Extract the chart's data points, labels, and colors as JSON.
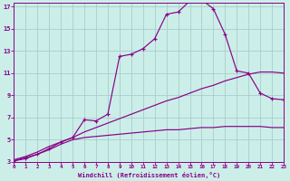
{
  "xlabel": "Windchill (Refroidissement éolien,°C)",
  "bg_color": "#cceee8",
  "line_color": "#880088",
  "grid_color": "#aacccc",
  "x_min": 0,
  "x_max": 23,
  "y_min": 3,
  "y_max": 17,
  "s1_x": [
    0,
    1,
    2,
    3,
    4,
    5,
    6,
    7,
    8,
    9,
    10,
    11,
    12,
    13,
    14,
    15,
    16,
    17,
    18,
    19,
    20,
    21,
    22,
    23
  ],
  "s1_y": [
    3.1,
    3.3,
    3.7,
    4.2,
    4.8,
    5.2,
    6.8,
    6.7,
    7.3,
    12.5,
    12.7,
    13.2,
    14.1,
    16.3,
    16.5,
    17.5,
    17.6,
    16.8,
    14.5,
    11.2,
    11.0,
    9.2,
    8.7,
    8.6
  ],
  "s2_x": [
    0,
    1,
    2,
    3,
    4,
    5,
    6,
    7,
    8,
    9,
    10,
    11,
    12,
    13,
    14,
    15,
    16,
    17,
    18,
    19,
    20,
    21,
    22,
    23
  ],
  "s2_y": [
    3.2,
    3.5,
    3.9,
    4.4,
    4.8,
    5.2,
    5.7,
    6.1,
    6.5,
    6.9,
    7.3,
    7.7,
    8.1,
    8.5,
    8.8,
    9.2,
    9.6,
    9.9,
    10.3,
    10.6,
    10.9,
    11.1,
    11.1,
    11.0
  ],
  "s3_x": [
    0,
    1,
    2,
    3,
    4,
    5,
    6,
    7,
    8,
    9,
    10,
    11,
    12,
    13,
    14,
    15,
    16,
    17,
    18,
    19,
    20,
    21,
    22,
    23
  ],
  "s3_y": [
    3.1,
    3.4,
    3.7,
    4.1,
    4.6,
    5.0,
    5.2,
    5.3,
    5.4,
    5.5,
    5.6,
    5.7,
    5.8,
    5.9,
    5.9,
    6.0,
    6.1,
    6.1,
    6.2,
    6.2,
    6.2,
    6.2,
    6.1,
    6.1
  ],
  "yticks": [
    3,
    5,
    7,
    9,
    11,
    13,
    15,
    17
  ],
  "xticks": [
    0,
    1,
    2,
    3,
    4,
    5,
    6,
    7,
    8,
    9,
    10,
    11,
    12,
    13,
    14,
    15,
    16,
    17,
    18,
    19,
    20,
    21,
    22,
    23
  ],
  "figw": 3.2,
  "figh": 2.0,
  "dpi": 100
}
